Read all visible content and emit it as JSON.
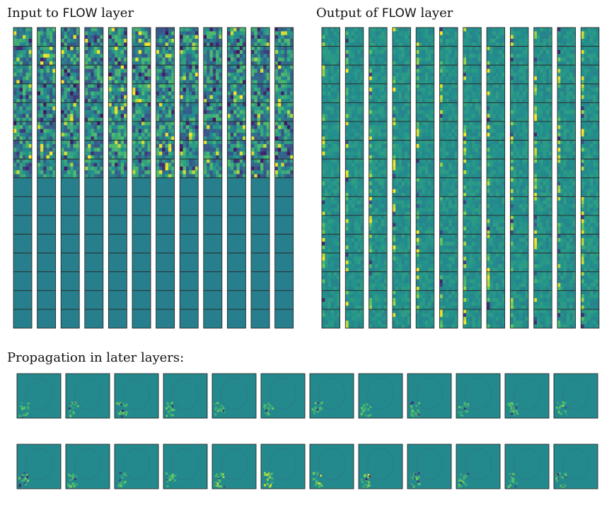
{
  "titles": {
    "input_prefix": "Input to ",
    "input_code": "FLOW",
    "input_suffix": " layer",
    "output_prefix": "Output of ",
    "output_code": "FLOW",
    "output_suffix": " layer",
    "propagation": "Propagation in later layers:"
  },
  "colors": {
    "base": "#277f8e",
    "cell_stroke": "#2a2a2a",
    "colormap": [
      "#440154",
      "#3b528b",
      "#21918c",
      "#5ec962",
      "#fde725"
    ]
  }
}
